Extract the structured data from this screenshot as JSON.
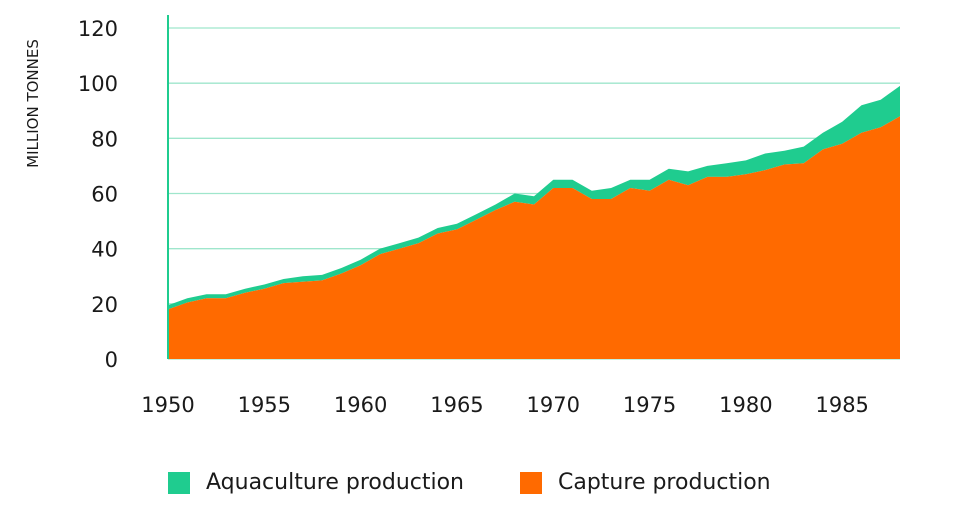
{
  "chart_data": {
    "type": "area",
    "stacked": true,
    "ylabel": "MILLION TONNES",
    "ylim": [
      0,
      120
    ],
    "yticks": [
      0,
      20,
      40,
      60,
      80,
      100,
      120
    ],
    "xlim": [
      1950,
      1988
    ],
    "xticks": [
      1950,
      1955,
      1960,
      1965,
      1970,
      1975,
      1980,
      1985
    ],
    "grid": "horizontal",
    "legend_position": "bottom",
    "x": [
      1950,
      1951,
      1952,
      1953,
      1954,
      1955,
      1956,
      1957,
      1958,
      1959,
      1960,
      1961,
      1962,
      1963,
      1964,
      1965,
      1966,
      1967,
      1968,
      1969,
      1970,
      1971,
      1972,
      1973,
      1974,
      1975,
      1976,
      1977,
      1978,
      1979,
      1980,
      1981,
      1982,
      1983,
      1984,
      1985,
      1986,
      1987,
      1988
    ],
    "series": [
      {
        "name": "Capture production",
        "color": "#ff6a00",
        "values": [
          18,
          20.5,
          22,
          22,
          24,
          25.5,
          27.5,
          28,
          28.5,
          31,
          34,
          38,
          40,
          42,
          45.5,
          47,
          50.5,
          54,
          57,
          56,
          62,
          62,
          58,
          58,
          62,
          61,
          65,
          63,
          66,
          66,
          67,
          68.5,
          70.5,
          71,
          76,
          78,
          82,
          84,
          88
        ]
      },
      {
        "name": "Aquaculture production",
        "color": "#1fcc8f",
        "values": [
          1.5,
          1.5,
          1.5,
          1.5,
          1.5,
          1.5,
          1.5,
          2,
          2,
          2,
          2,
          2,
          2,
          2,
          2,
          2,
          2,
          2,
          3,
          3,
          3,
          3,
          3,
          4,
          3,
          4,
          4,
          5,
          4,
          5,
          5,
          6,
          5,
          6,
          6,
          8,
          10,
          10,
          11
        ]
      }
    ]
  },
  "legend": {
    "aquaculture": "Aquaculture production",
    "capture": "Capture production"
  }
}
